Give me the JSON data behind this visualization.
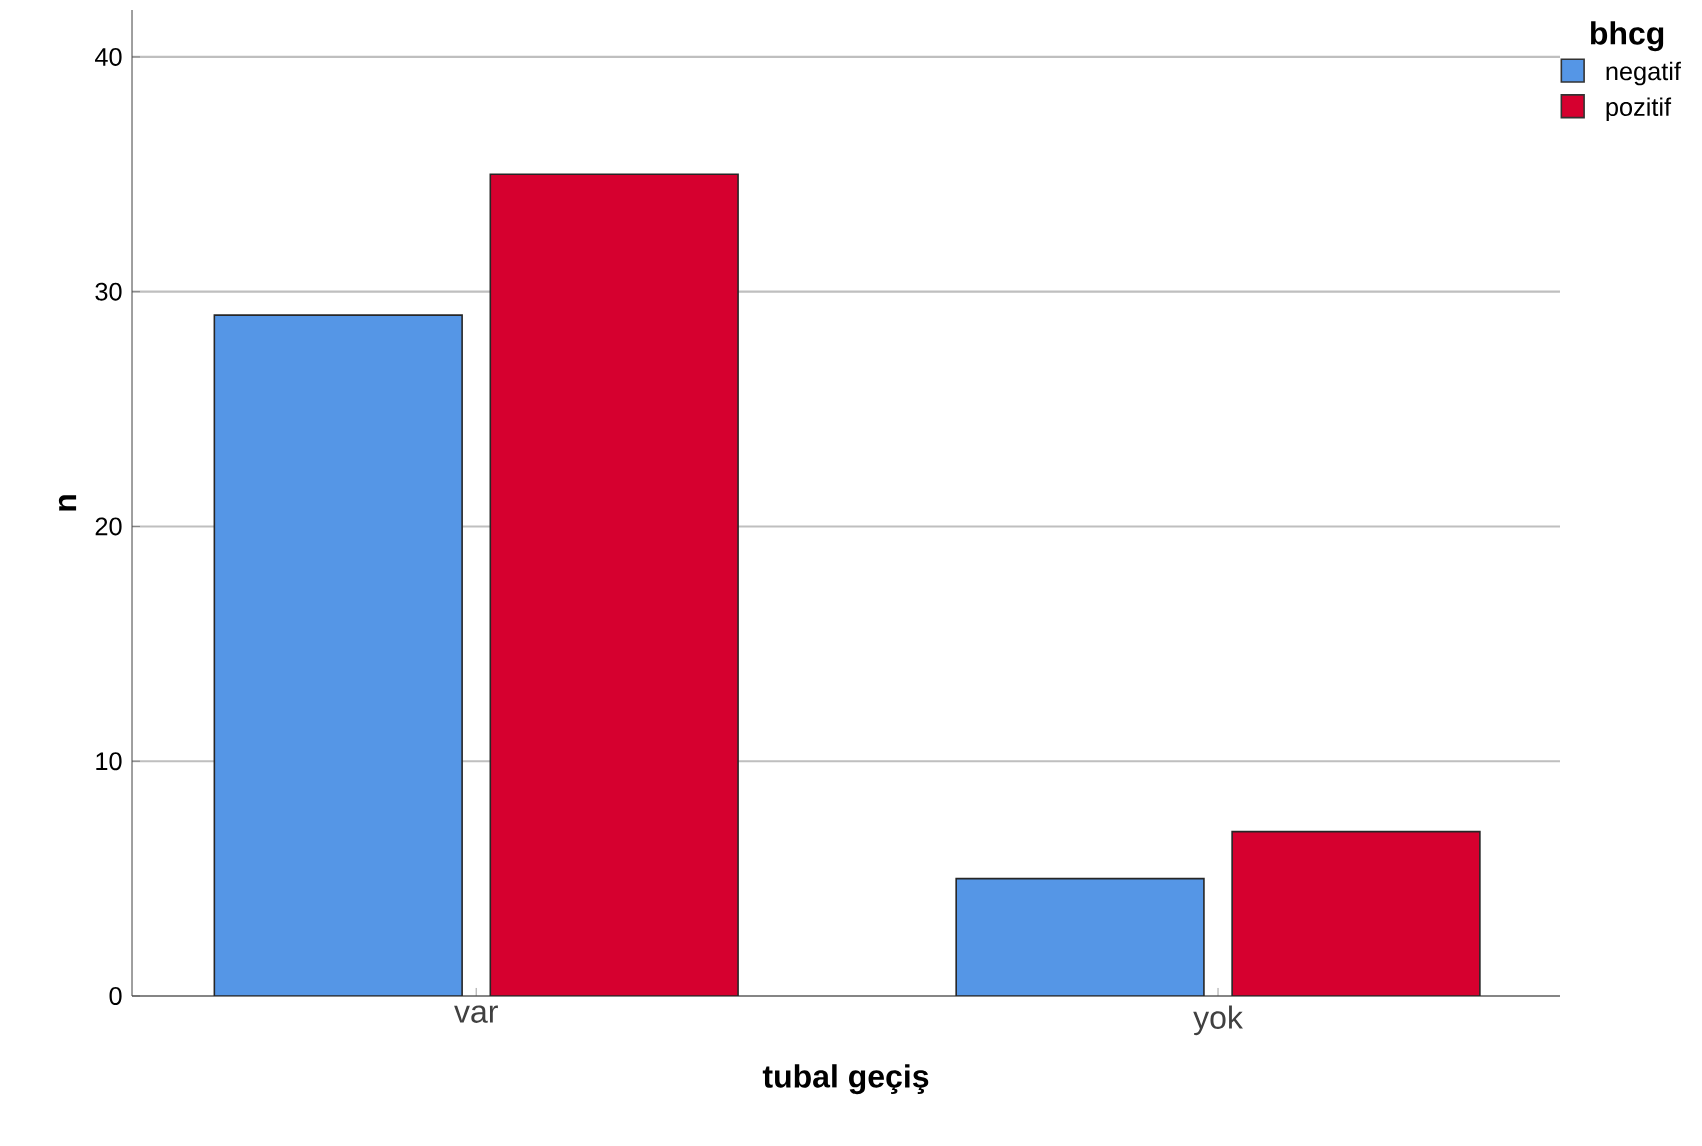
{
  "chart_data": {
    "type": "bar",
    "xlabel": "tubal geçiş",
    "ylabel": "n",
    "legend_title": "bhcg",
    "categories": [
      "var",
      "yok"
    ],
    "series": [
      {
        "name": "negatif",
        "color": "#5596e6",
        "values": [
          29,
          5
        ]
      },
      {
        "name": "pozitif",
        "color": "#d6002f",
        "values": [
          35,
          7
        ]
      }
    ],
    "ylim": [
      0,
      42
    ],
    "yticks": [
      0,
      10,
      20,
      30,
      40
    ],
    "grid": "y",
    "legend": "top right"
  }
}
